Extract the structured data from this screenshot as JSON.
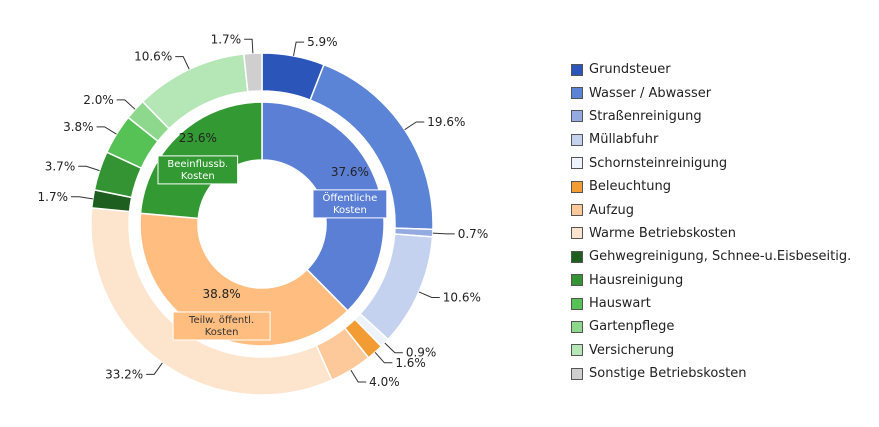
{
  "chart_data": {
    "type": "pie",
    "title": "",
    "inner": [
      {
        "label": "Öffentliche Kosten",
        "value": 37.6,
        "value_label": "37.6%",
        "color": "#5b7fd4"
      },
      {
        "label": "Teilw. öffentl. Kosten",
        "value": 38.8,
        "value_label": "38.8%",
        "color": "#ffbd80"
      },
      {
        "label": "Beeinflussb. Kosten",
        "value": 23.6,
        "value_label": "23.6%",
        "color": "#339933"
      }
    ],
    "outer": [
      {
        "name": "Grundsteuer",
        "value": 5.9,
        "value_label": "5.9%",
        "color": "#2b55b8"
      },
      {
        "name": "Wasser / Abwasser",
        "value": 19.6,
        "value_label": "19.6%",
        "color": "#5b84d6"
      },
      {
        "name": "Straßenreinigung",
        "value": 0.7,
        "value_label": "0.7%",
        "color": "#93abe0"
      },
      {
        "name": "Müllabfuhr",
        "value": 10.6,
        "value_label": "10.6%",
        "color": "#c4d2f0"
      },
      {
        "name": "Schornsteinreinigung",
        "value": 0.9,
        "value_label": "0.9%",
        "color": "#eef2fa"
      },
      {
        "name": "Beleuchtung",
        "value": 1.6,
        "value_label": "1.6%",
        "color": "#f29c33"
      },
      {
        "name": "Aufzug",
        "value": 4.0,
        "value_label": "4.0%",
        "color": "#fdc89a"
      },
      {
        "name": "Warme Betriebskosten",
        "value": 33.2,
        "value_label": "33.2%",
        "color": "#fde4cc"
      },
      {
        "name": "Gehwegreinigung, Schnee-u.Eisbeseitig.",
        "value": 1.7,
        "value_label": "1.7%",
        "color": "#1e5e1e"
      },
      {
        "name": "Hausreinigung",
        "value": 3.7,
        "value_label": "3.7%",
        "color": "#349434"
      },
      {
        "name": "Hauswart",
        "value": 3.8,
        "value_label": "3.8%",
        "color": "#56c256"
      },
      {
        "name": "Gartenpflege",
        "value": 2.0,
        "value_label": "2.0%",
        "color": "#8ed88e"
      },
      {
        "name": "Versicherung",
        "value": 10.6,
        "value_label": "10.6%",
        "color": "#b5e6b5"
      },
      {
        "name": "Sonstige Betriebskosten",
        "value": 1.7,
        "value_label": "1.7%",
        "color": "#cfcfcf"
      }
    ],
    "legend_position": "right"
  }
}
